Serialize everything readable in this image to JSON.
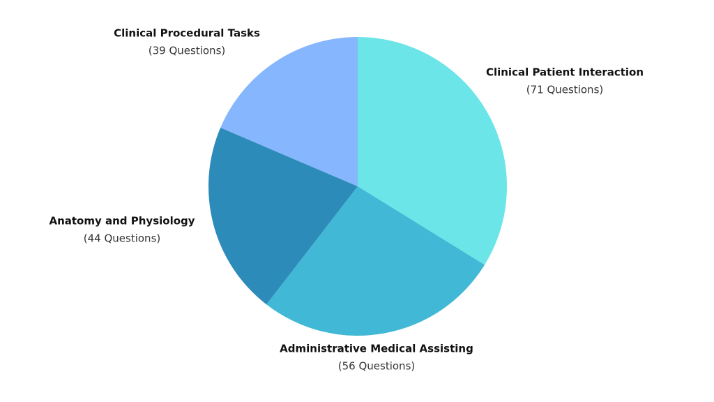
{
  "chart_data": {
    "type": "pie",
    "categories": [
      "Clinical Patient Interaction",
      "Administrative Medical Assisting",
      "Anatomy and Physiology",
      "Clinical Procedural Tasks"
    ],
    "values": [
      71,
      56,
      44,
      39
    ],
    "value_labels": [
      "(71 Questions)",
      "(56 Questions)",
      "(44 Questions)",
      "(39 Questions)"
    ],
    "colors": [
      "#6ce5e8",
      "#41b8d5",
      "#2d8bba",
      "#86b6fd"
    ]
  }
}
